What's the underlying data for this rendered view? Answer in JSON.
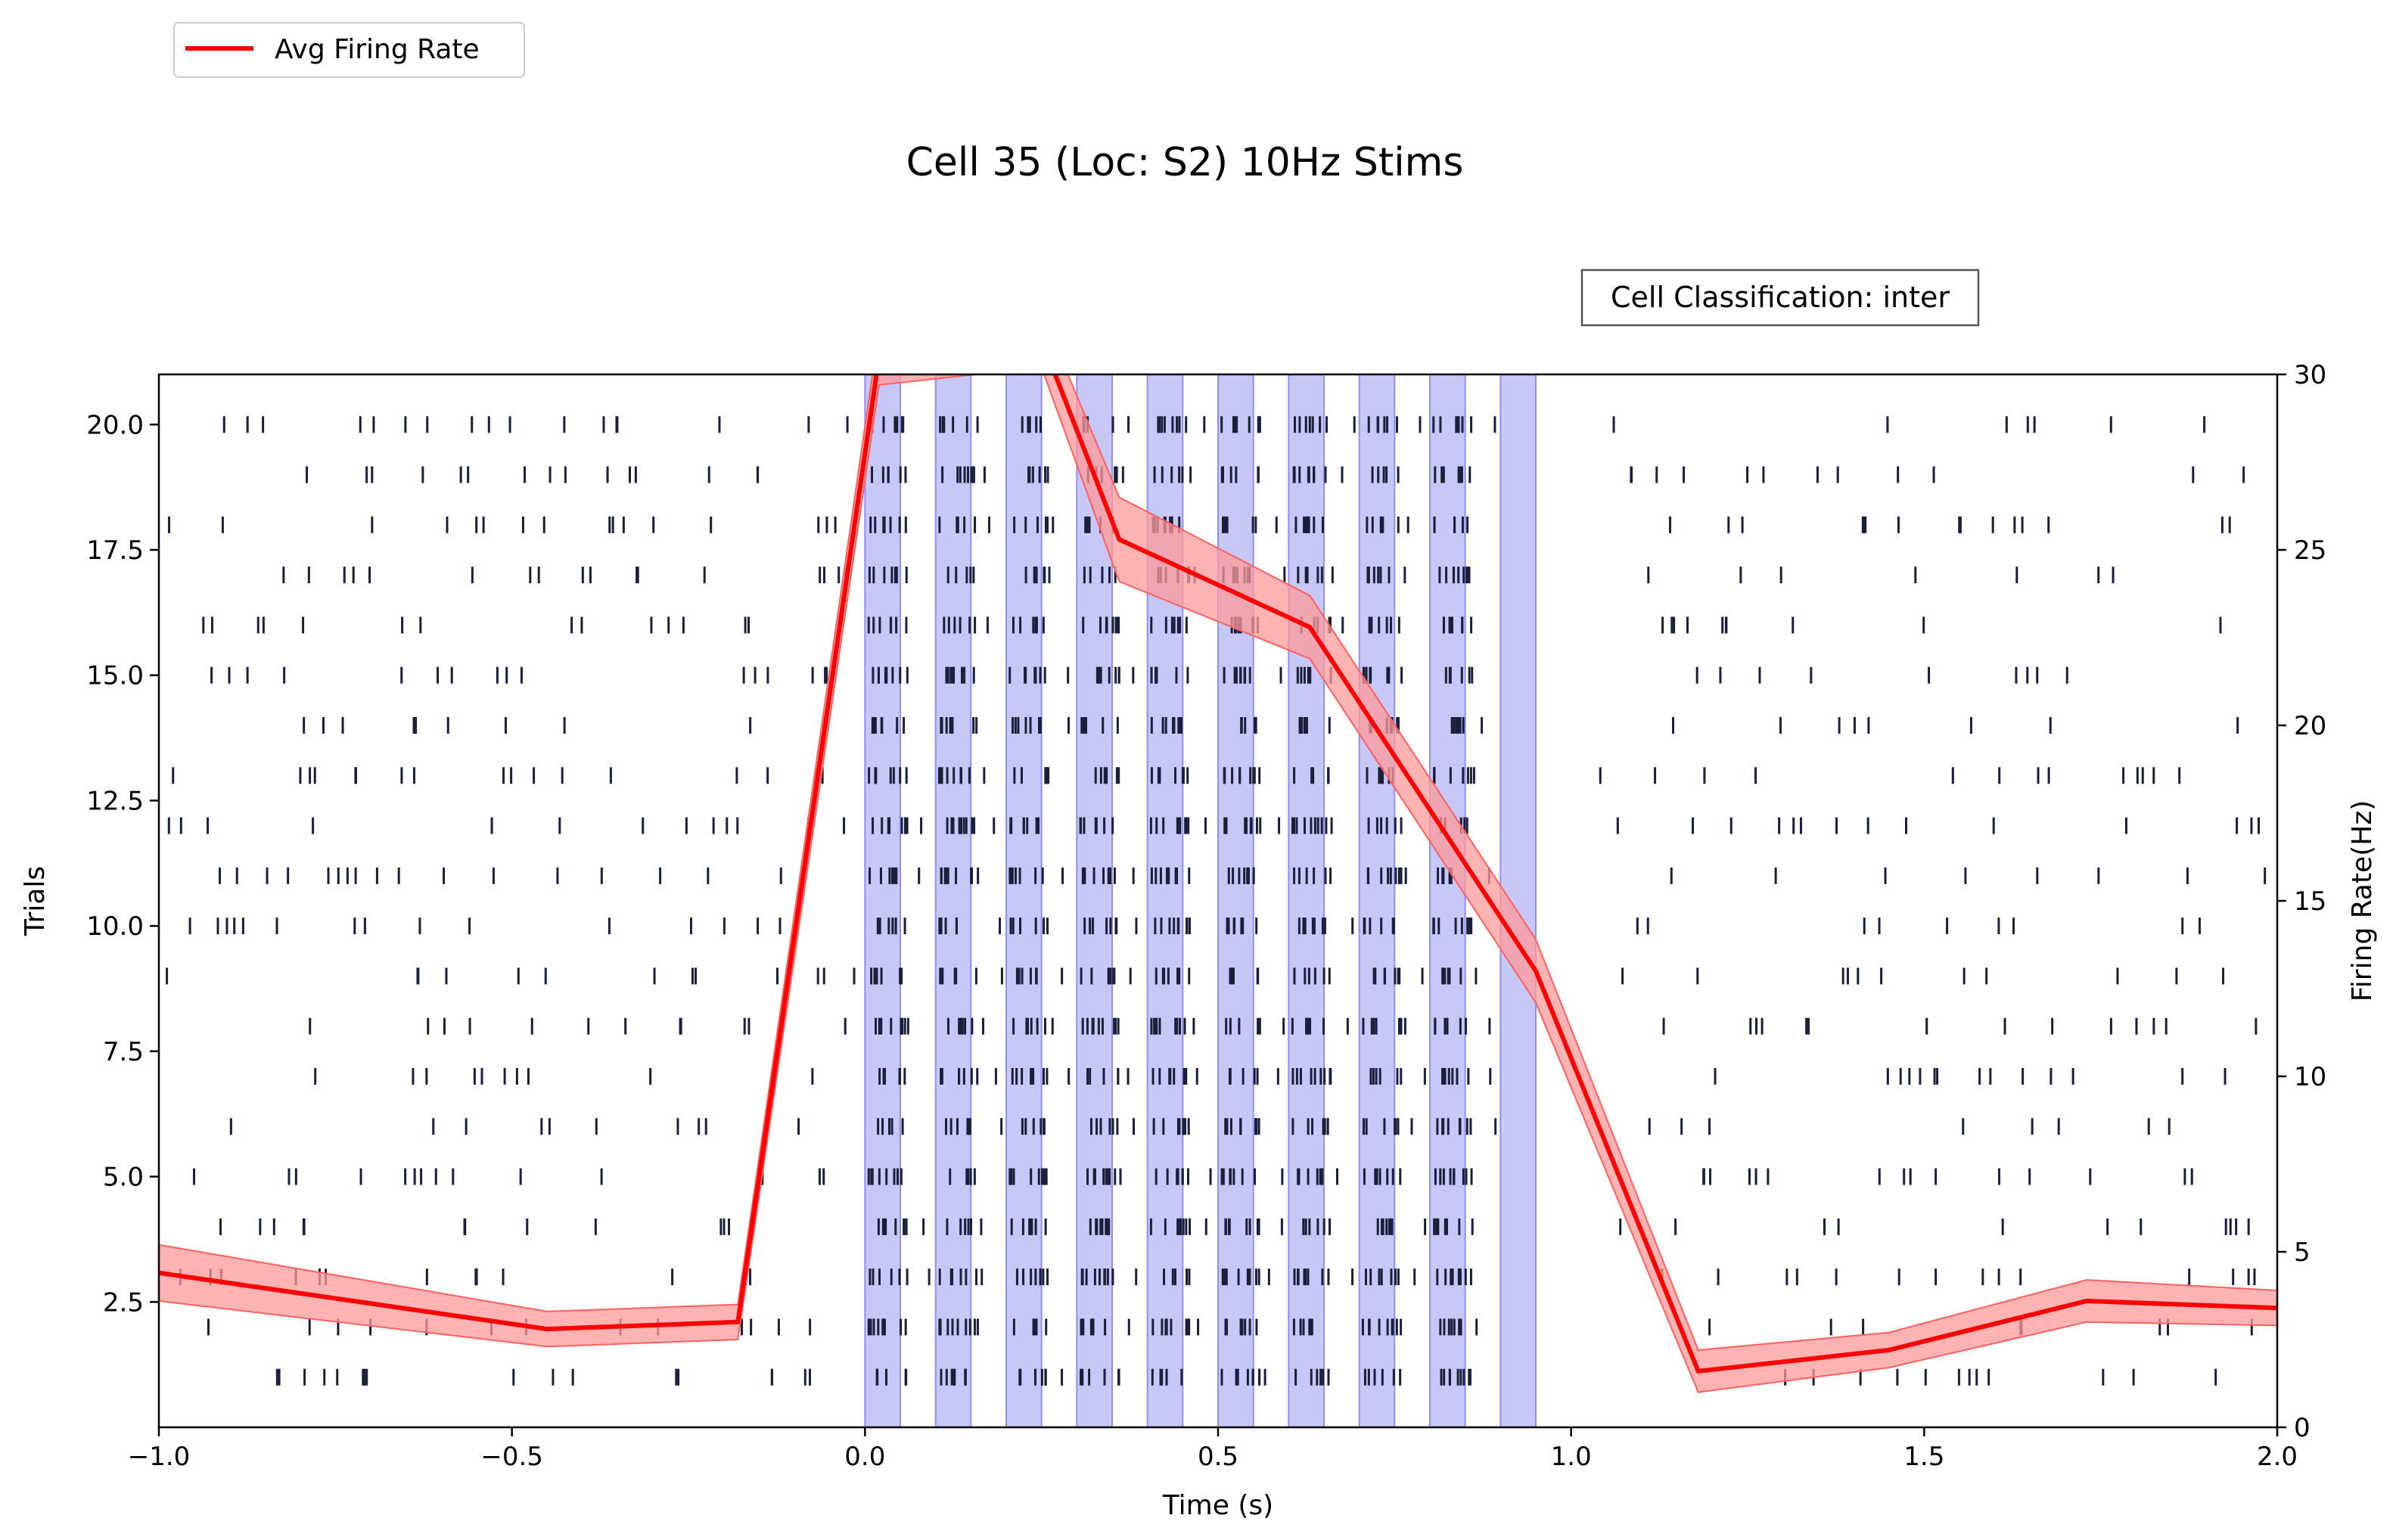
{
  "chart_data": {
    "type": "raster-with-line",
    "title": "Cell 35 (Loc: S2) 10Hz Stims",
    "xlabel": "Time (s)",
    "ylabel_left": "Trials",
    "ylabel_right": "Firing Rate(Hz)",
    "xlim": [
      -1.0,
      2.0
    ],
    "ylim_left": [
      0,
      21
    ],
    "ylim_right": [
      0,
      30
    ],
    "x_ticks": [
      -1.0,
      -0.5,
      0.0,
      0.5,
      1.0,
      1.5,
      2.0
    ],
    "x_tick_labels": [
      "−1.0",
      "−0.5",
      "0.0",
      "0.5",
      "1.0",
      "1.5",
      "2.0"
    ],
    "y_left_ticks": [
      2.5,
      5.0,
      7.5,
      10.0,
      12.5,
      15.0,
      17.5,
      20.0
    ],
    "y_left_tick_labels": [
      "2.5",
      "5.0",
      "7.5",
      "10.0",
      "12.5",
      "15.0",
      "17.5",
      "20.0"
    ],
    "y_right_ticks": [
      0,
      5,
      10,
      15,
      20,
      25,
      30
    ],
    "y_right_tick_labels": [
      "0",
      "5",
      "10",
      "15",
      "20",
      "25",
      "30"
    ],
    "annotation": "Cell Classification: inter",
    "legend": {
      "label": "Avg Firing Rate",
      "placement": "top-left",
      "color": "#ff0000"
    },
    "stim_windows": [
      [
        0.0,
        0.05
      ],
      [
        0.1,
        0.15
      ],
      [
        0.2,
        0.25
      ],
      [
        0.3,
        0.35
      ],
      [
        0.4,
        0.45
      ],
      [
        0.5,
        0.55
      ],
      [
        0.6,
        0.65
      ],
      [
        0.7,
        0.75
      ],
      [
        0.8,
        0.85
      ],
      [
        0.9,
        0.95
      ]
    ],
    "stim_color": "#c8c8f8",
    "stim_edge_color": "#9090f0",
    "raster_color": "#1a1f3a",
    "raster_trials": 20,
    "raster_pre_window": [
      -1.0,
      0.0
    ],
    "raster_post_window": [
      1.0,
      2.0
    ],
    "raster_pre_spikes_per_trial": 14,
    "raster_post_spikes_per_trial": 12,
    "raster_stim_spikes_per_window": 7,
    "raster_gap_spikes_per_window": 1,
    "firing_rate": {
      "color": "#ff0000",
      "band_color": "#ff9a9a",
      "x": [
        -1.0,
        -0.45,
        -0.18,
        0.02,
        0.25,
        0.36,
        0.63,
        0.95,
        1.18,
        1.45,
        1.73,
        2.0
      ],
      "y": [
        4.4,
        2.8,
        3.0,
        30.5,
        31.0,
        25.3,
        22.8,
        13.0,
        1.6,
        2.2,
        3.6,
        3.4
      ],
      "sem": [
        0.8,
        0.5,
        0.5,
        0.8,
        0.8,
        1.2,
        0.9,
        0.9,
        0.6,
        0.5,
        0.6,
        0.5
      ]
    }
  }
}
